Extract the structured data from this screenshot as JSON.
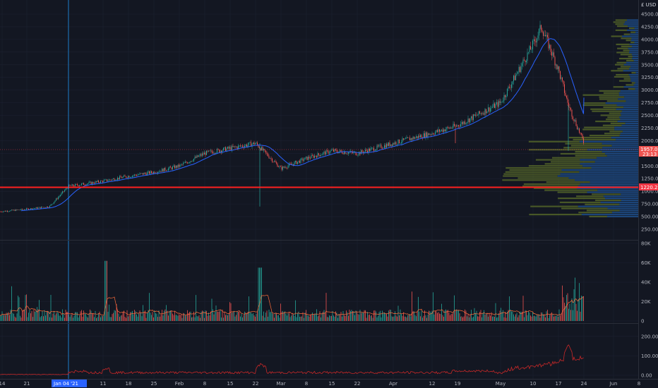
{
  "header": {
    "unit_label": "USD",
    "currency_symbol": "£",
    "corner_value": "0"
  },
  "colors": {
    "background": "#131722",
    "grid": "#1c2030",
    "up": "#26a69a",
    "down": "#ef5350",
    "ma_line": "#2962ff",
    "price_line": "#f23645",
    "crosshair": "#2196f3",
    "vp_up": "#5b6e2a",
    "vp_down": "#1f4e8a",
    "vol_ma": "#ff6d3a",
    "indicator": "#c62828"
  },
  "axis": {
    "x_ticks": [
      "14",
      "21",
      "11",
      "18",
      "25",
      "Feb",
      "8",
      "15",
      "22",
      "Mar",
      "8",
      "15",
      "22",
      "Apr",
      "12",
      "19",
      "May",
      "10",
      "17",
      "24",
      "Jun",
      "8"
    ],
    "x_date_tag": "Jan 04 '21",
    "price_ticks": [
      "4500.00",
      "4250.00",
      "4000.00",
      "3750.00",
      "3500.00",
      "3250.00",
      "3000.00",
      "2750.00",
      "2500.00",
      "2250.00",
      "2000.00",
      "1750.00",
      "1500.00",
      "1250.00",
      "1000.00",
      "750.00",
      "500.00",
      "250.00"
    ],
    "volume_ticks": [
      "80K",
      "60K",
      "40K",
      "20K",
      "0"
    ],
    "indicator_ticks": [
      "200.00",
      "100.00",
      "0.00"
    ]
  },
  "tags": {
    "last_price": "1957.03",
    "last_countdown": "23:13",
    "line_price": "1220.25"
  },
  "chart_data": {
    "type": "candlestick",
    "symbol_unit": "USD",
    "price_range": [
      250,
      4500
    ],
    "horizontal_line": 1220.25,
    "last_price": 1957.03,
    "close_path": [
      {
        "x": "Jan 04",
        "y": 1100
      },
      {
        "x": "Jan 11",
        "y": 1200
      },
      {
        "x": "Jan 18",
        "y": 1300
      },
      {
        "x": "Jan 25",
        "y": 1380
      },
      {
        "x": "Feb 01",
        "y": 1500
      },
      {
        "x": "Feb 08",
        "y": 1750
      },
      {
        "x": "Feb 15",
        "y": 1850
      },
      {
        "x": "Feb 22",
        "y": 1950
      },
      {
        "x": "Mar 01",
        "y": 1450
      },
      {
        "x": "Mar 08",
        "y": 1650
      },
      {
        "x": "Mar 15",
        "y": 1800
      },
      {
        "x": "Mar 22",
        "y": 1750
      },
      {
        "x": "Apr 01",
        "y": 1950
      },
      {
        "x": "Apr 12",
        "y": 2150
      },
      {
        "x": "Apr 19",
        "y": 2300
      },
      {
        "x": "May 01",
        "y": 2750
      },
      {
        "x": "May 10",
        "y": 3900
      },
      {
        "x": "May 12",
        "y": 4250
      },
      {
        "x": "May 17",
        "y": 3400
      },
      {
        "x": "May 20",
        "y": 2700
      },
      {
        "x": "May 24",
        "y": 1957
      }
    ],
    "volume_range": [
      0,
      80000
    ],
    "indicator_range": [
      0,
      250
    ]
  }
}
